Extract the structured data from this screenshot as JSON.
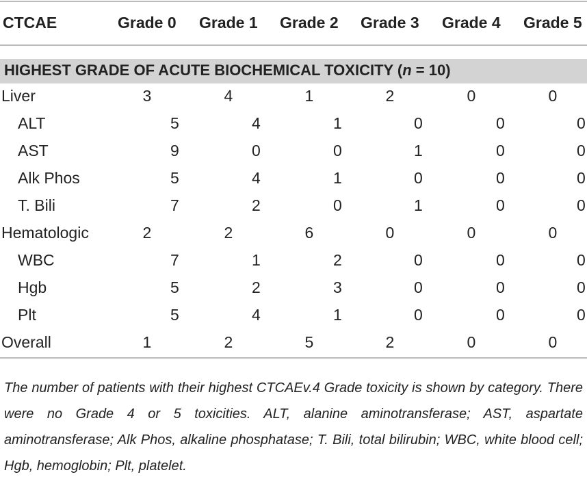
{
  "table": {
    "header": [
      "CTCAE",
      "Grade 0",
      "Grade 1",
      "Grade 2",
      "Grade 3",
      "Grade 4",
      "Grade 5"
    ],
    "section": {
      "before": "HIGHEST GRADE OF ACUTE BIOCHEMICAL TOXICITY (",
      "italic": "n",
      "after": " = 10)"
    },
    "groups": [
      {
        "label": "Liver",
        "values": [
          3,
          4,
          1,
          2,
          0,
          0
        ],
        "items": [
          {
            "label": "ALT",
            "values": [
              5,
              4,
              1,
              0,
              0,
              0
            ]
          },
          {
            "label": "AST",
            "values": [
              9,
              0,
              0,
              1,
              0,
              0
            ]
          },
          {
            "label": "Alk Phos",
            "values": [
              5,
              4,
              1,
              0,
              0,
              0
            ]
          },
          {
            "label": "T. Bili",
            "values": [
              7,
              2,
              0,
              1,
              0,
              0
            ]
          }
        ]
      },
      {
        "label": "Hematologic",
        "values": [
          2,
          2,
          6,
          0,
          0,
          0
        ],
        "items": [
          {
            "label": "WBC",
            "values": [
              7,
              1,
              2,
              0,
              0,
              0
            ]
          },
          {
            "label": "Hgb",
            "values": [
              5,
              2,
              3,
              0,
              0,
              0
            ]
          },
          {
            "label": "Plt",
            "values": [
              5,
              4,
              1,
              0,
              0,
              0
            ]
          }
        ]
      },
      {
        "label": "Overall",
        "values": [
          1,
          2,
          5,
          2,
          0,
          0
        ],
        "items": []
      }
    ],
    "footnote": "The number of patients with their highest CTCAEv.4 Grade toxicity is shown by category. There were no Grade 4 or 5 toxicities. ALT, alanine aminotransferase; AST, aspartate aminotransferase; Alk Phos, alkaline phosphatase; T. Bili, total bilirubin; WBC, white blood cell; Hgb, hemoglobin; Plt, platelet."
  }
}
